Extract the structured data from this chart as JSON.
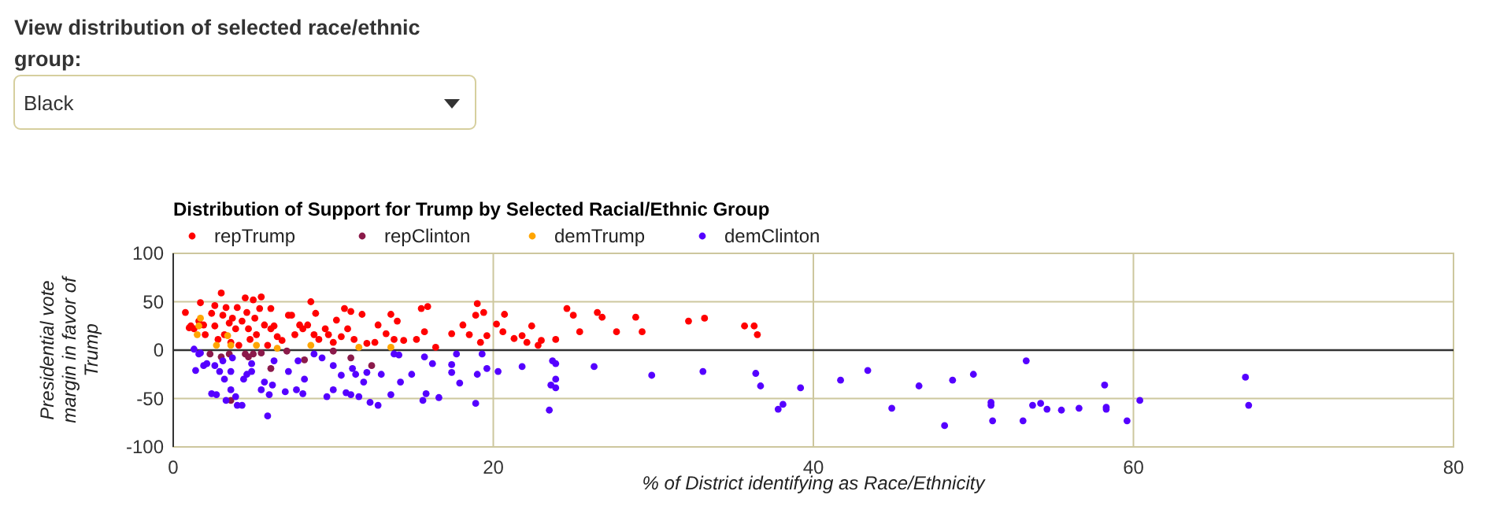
{
  "chart_data": {
    "type": "scatter",
    "title": "Distribution of Support for Trump by Selected Racial/Ethnic Group",
    "xlabel": "% of District identifying as Race/Ethnicity",
    "ylabel": "Presidential vote margin in favor of Trump",
    "annotations": [
      "View distribution of selected race/ethnic group:",
      "Black"
    ],
    "xlim": [
      0,
      80
    ],
    "ylim": [
      -100,
      100
    ],
    "xticks": [
      0,
      20,
      40,
      60,
      80
    ],
    "yticks": [
      -100,
      -50,
      0,
      50,
      100
    ],
    "grid": true,
    "legend": "top left",
    "marker": "circle",
    "ref_lines": [
      {
        "axis": "y",
        "value": 0,
        "color": "#333333"
      }
    ],
    "series": [
      {
        "name": "repTrump",
        "color": "#ff0000",
        "x": [
          0.76,
          1.0,
          1.1,
          1.3,
          1.7,
          1.6,
          1.9,
          2.0,
          2.4,
          2.6,
          2.6,
          2.8,
          3.0,
          3.1,
          3.2,
          3.3,
          3.5,
          3.6,
          3.7,
          3.9,
          4.0,
          4.1,
          4.3,
          4.5,
          4.6,
          4.7,
          4.8,
          5.0,
          5.1,
          5.2,
          5.4,
          5.5,
          5.7,
          5.9,
          6.1,
          6.1,
          6.3,
          6.5,
          6.8,
          7.2,
          7.4,
          7.6,
          7.9,
          8.1,
          8.4,
          8.6,
          8.8,
          8.9,
          9.1,
          9.5,
          9.7,
          10.0,
          10.2,
          10.5,
          10.7,
          11.1,
          10.9,
          11.3,
          11.8,
          12.1,
          12.6,
          12.8,
          13.3,
          13.6,
          13.8,
          14.0,
          14.4,
          15.2,
          15.5,
          15.9,
          15.7,
          16.4,
          17.4,
          18.1,
          18.5,
          18.9,
          19.0,
          19.2,
          19.4,
          19.6,
          20.2,
          20.7,
          20.6,
          21.3,
          21.8,
          22.4,
          22.1,
          22.8,
          23.0,
          23.9,
          24.6,
          25.0,
          25.4,
          26.5,
          26.8,
          27.7,
          28.9,
          29.3,
          32.2,
          33.2,
          35.7,
          36.3,
          36.5
        ],
        "values": [
          39,
          23,
          25,
          22,
          49,
          30,
          26,
          16,
          38,
          46,
          25,
          11,
          59,
          36,
          16,
          44,
          28,
          8,
          33,
          22,
          44,
          5,
          30,
          54,
          39,
          22,
          11,
          52,
          33,
          16,
          43,
          55,
          26,
          5,
          43,
          22,
          25,
          14,
          10,
          36,
          36,
          16,
          26,
          22,
          26,
          50,
          16,
          38,
          11,
          22,
          16,
          8,
          31,
          14,
          43,
          40,
          22,
          11,
          37,
          7,
          8,
          26,
          17,
          37,
          11,
          30,
          10,
          11,
          43,
          45,
          19,
          3,
          17,
          26,
          16,
          36,
          48,
          8,
          39,
          15,
          27,
          37,
          19,
          12,
          15,
          25,
          8,
          5,
          10,
          11,
          43,
          36,
          19,
          39,
          34,
          19,
          34,
          19,
          30,
          33,
          25,
          25,
          16
        ]
      },
      {
        "name": "repClinton",
        "color": "#8b1a4a",
        "x": [
          2.3,
          3.0,
          3.5,
          3.6,
          4.5,
          4.7,
          5.0,
          5.5,
          6.1,
          7.1,
          8.2,
          10.0,
          11.1,
          12.4
        ],
        "values": [
          -4,
          -7,
          -4,
          -52,
          -4,
          -7,
          -4,
          -3,
          -19,
          -1,
          -10,
          -1,
          -8,
          -16
        ]
      },
      {
        "name": "demTrump",
        "color": "#ffa500",
        "x": [
          1.5,
          1.6,
          1.7,
          2.7,
          3.4,
          3.6,
          5.2,
          6.5,
          8.6,
          11.6,
          13.6
        ],
        "values": [
          16,
          25,
          33,
          5,
          15,
          5,
          5,
          2,
          5,
          3,
          3
        ]
      },
      {
        "name": "demClinton",
        "color": "#5500ff",
        "x": [
          1.3,
          1.4,
          1.6,
          1.7,
          1.9,
          2.1,
          2.4,
          2.6,
          2.7,
          2.9,
          3.1,
          3.2,
          3.3,
          3.6,
          3.7,
          3.6,
          3.9,
          4.0,
          4.3,
          4.4,
          4.6,
          4.9,
          4.9,
          5.5,
          5.7,
          5.9,
          6.2,
          6.0,
          6.3,
          7.0,
          7.2,
          7.7,
          7.8,
          8.1,
          8.2,
          8.8,
          9.3,
          9.6,
          10.0,
          10.0,
          10.5,
          10.8,
          11.1,
          11.2,
          11.4,
          11.6,
          11.9,
          12.1,
          12.3,
          12.8,
          13.0,
          13.6,
          13.8,
          14.1,
          14.2,
          14.9,
          15.6,
          15.7,
          15.8,
          16.2,
          16.6,
          17.4,
          17.4,
          17.7,
          17.9,
          18.9,
          19.0,
          19.3,
          19.6,
          20.3,
          21.8,
          23.5,
          23.6,
          23.7,
          23.9,
          23.9,
          23.9,
          26.3,
          29.9,
          33.1,
          36.4,
          36.7,
          37.8,
          38.1,
          39.2,
          41.7,
          43.4,
          44.9,
          46.6,
          48.2,
          48.7,
          50.0,
          51.1,
          51.1,
          51.2,
          53.1,
          53.3,
          53.7,
          54.2,
          54.6,
          55.5,
          56.6,
          58.2,
          58.3,
          58.3,
          59.6,
          60.4,
          67.0,
          67.2
        ],
        "values": [
          1,
          -21,
          -4,
          -3,
          -16,
          -14,
          -45,
          -16,
          -46,
          -22,
          -11,
          -30,
          -52,
          -22,
          -8,
          -41,
          -48,
          -57,
          -57,
          -30,
          -25,
          -14,
          -22,
          -41,
          -33,
          -68,
          -36,
          -46,
          -11,
          -43,
          -22,
          -41,
          -11,
          -45,
          -30,
          -4,
          -8,
          -48,
          -41,
          -16,
          -26,
          -44,
          -46,
          -19,
          -25,
          -48,
          -33,
          -23,
          -54,
          -57,
          -25,
          -46,
          -4,
          -5,
          -33,
          -25,
          -52,
          -7,
          -45,
          -14,
          -49,
          -15,
          -23,
          -4,
          -34,
          -55,
          -25,
          -4,
          -19,
          -22,
          -17,
          -62,
          -36,
          -11,
          -14,
          -39,
          -30,
          -17,
          -26,
          -22,
          -24,
          -37,
          -61,
          -56,
          -39,
          -31,
          -21,
          -60,
          -37,
          -78,
          -31,
          -25,
          -54,
          -57,
          -73,
          -73,
          -11,
          -57,
          -55,
          -61,
          -62,
          -60,
          -36,
          -59,
          -61,
          -73,
          -52,
          -28,
          -57
        ]
      }
    ]
  }
}
